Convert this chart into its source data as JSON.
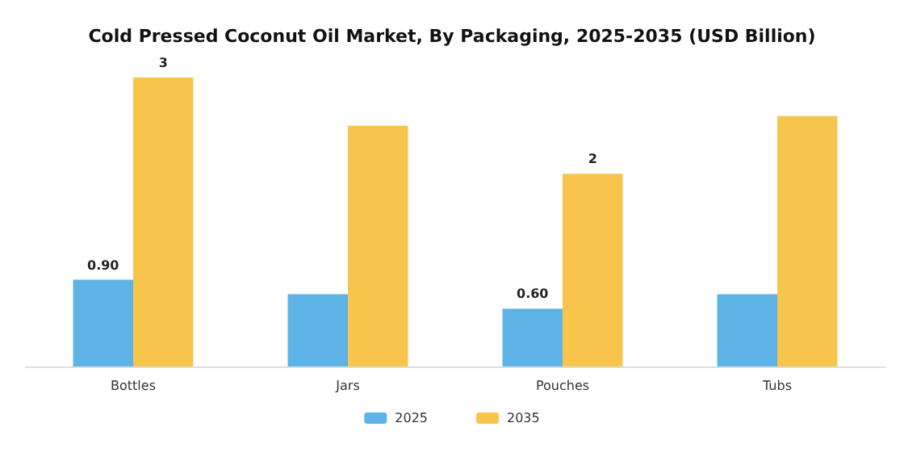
{
  "chart_data": {
    "type": "bar",
    "title": "Cold Pressed Coconut Oil Market, By Packaging, 2025-2035 (USD Billion)",
    "categories": [
      "Bottles",
      "Jars",
      "Pouches",
      "Tubs"
    ],
    "series": [
      {
        "name": "2025",
        "color": "#5db3e6",
        "values": [
          0.9,
          0.75,
          0.6,
          0.75
        ],
        "value_labels": [
          "0.90",
          null,
          "0.60",
          null
        ]
      },
      {
        "name": "2035",
        "color": "#f7c44c",
        "values": [
          3,
          2.5,
          2,
          2.6
        ],
        "value_labels": [
          "3",
          null,
          "2",
          null
        ]
      }
    ],
    "legend": "bottom"
  }
}
